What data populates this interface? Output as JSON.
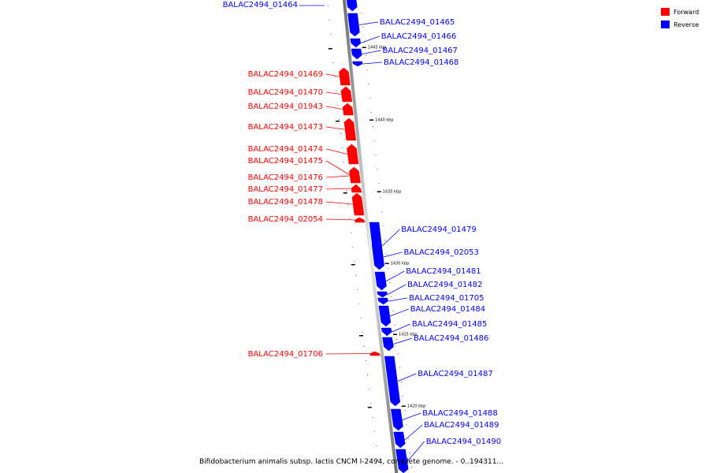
{
  "colors": {
    "forward": "#ff0000",
    "reverse": "#0000ff",
    "backbone": "#9a9a9a"
  },
  "legend": [
    {
      "key": "forward",
      "label": "Forward"
    },
    {
      "key": "reverse",
      "label": "Reverse"
    }
  ],
  "caption": "Bifidobacterium animalis subsp. lactis CNCM I-2494, complete genome. - 0..194311...",
  "ticks": [
    "1445 kbp",
    "1440 kbp",
    "1435 kbp",
    "1430 kbp",
    "1425 kbp",
    "1420 kbp"
  ],
  "genes": [
    {
      "label": "BALAC2494_01464",
      "strand": "reverse"
    },
    {
      "label": "BALAC2494_01465",
      "strand": "reverse"
    },
    {
      "label": "BALAC2494_01466",
      "strand": "reverse"
    },
    {
      "label": "BALAC2494_01467",
      "strand": "reverse"
    },
    {
      "label": "BALAC2494_01468",
      "strand": "reverse"
    },
    {
      "label": "BALAC2494_01469",
      "strand": "forward"
    },
    {
      "label": "BALAC2494_01470",
      "strand": "forward"
    },
    {
      "label": "BALAC2494_01943",
      "strand": "forward"
    },
    {
      "label": "BALAC2494_01473",
      "strand": "forward"
    },
    {
      "label": "BALAC2494_01474",
      "strand": "forward"
    },
    {
      "label": "BALAC2494_01475",
      "strand": "forward"
    },
    {
      "label": "BALAC2494_01476",
      "strand": "forward"
    },
    {
      "label": "BALAC2494_01477",
      "strand": "forward"
    },
    {
      "label": "BALAC2494_01478",
      "strand": "forward"
    },
    {
      "label": "BALAC2494_02054",
      "strand": "forward"
    },
    {
      "label": "BALAC2494_01479",
      "strand": "reverse"
    },
    {
      "label": "BALAC2494_02053",
      "strand": "reverse"
    },
    {
      "label": "BALAC2494_01481",
      "strand": "reverse"
    },
    {
      "label": "BALAC2494_01482",
      "strand": "reverse"
    },
    {
      "label": "BALAC2494_01705",
      "strand": "reverse"
    },
    {
      "label": "BALAC2494_01484",
      "strand": "reverse"
    },
    {
      "label": "BALAC2494_01485",
      "strand": "reverse"
    },
    {
      "label": "BALAC2494_01486",
      "strand": "reverse"
    },
    {
      "label": "BALAC2494_01706",
      "strand": "forward"
    },
    {
      "label": "BALAC2494_01487",
      "strand": "reverse"
    },
    {
      "label": "BALAC2494_01488",
      "strand": "reverse"
    },
    {
      "label": "BALAC2494_01489",
      "strand": "reverse"
    },
    {
      "label": "BALAC2494_01490",
      "strand": "reverse"
    }
  ]
}
